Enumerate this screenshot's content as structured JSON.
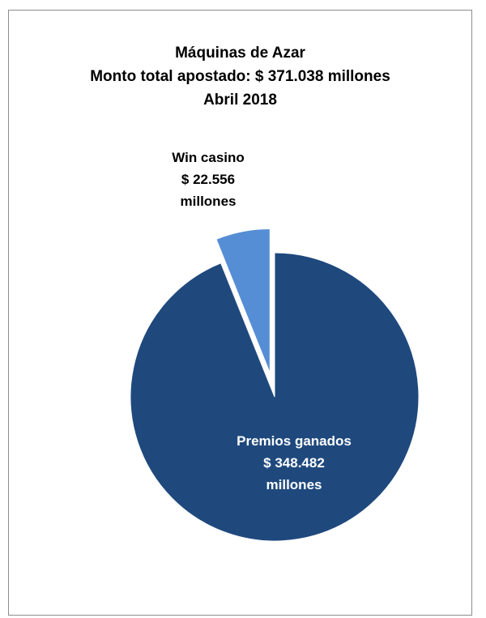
{
  "chart_data": {
    "type": "pie",
    "title": [
      "Máquinas de Azar",
      "Monto total apostado: $ 371.038 millones",
      "Abril 2018"
    ],
    "unit": "millones",
    "slices": [
      {
        "name": "Win casino",
        "value": 22.556,
        "label_lines": [
          "Win casino",
          "$ 22.556",
          "millones"
        ],
        "color": "#558ED5",
        "exploded": true
      },
      {
        "name": "Premios ganados",
        "value": 348.482,
        "label_lines": [
          "Premios ganados",
          "$ 348.482",
          "millones"
        ],
        "color": "#1F497D",
        "exploded": false
      }
    ],
    "total": 371.038,
    "legend": "none"
  }
}
